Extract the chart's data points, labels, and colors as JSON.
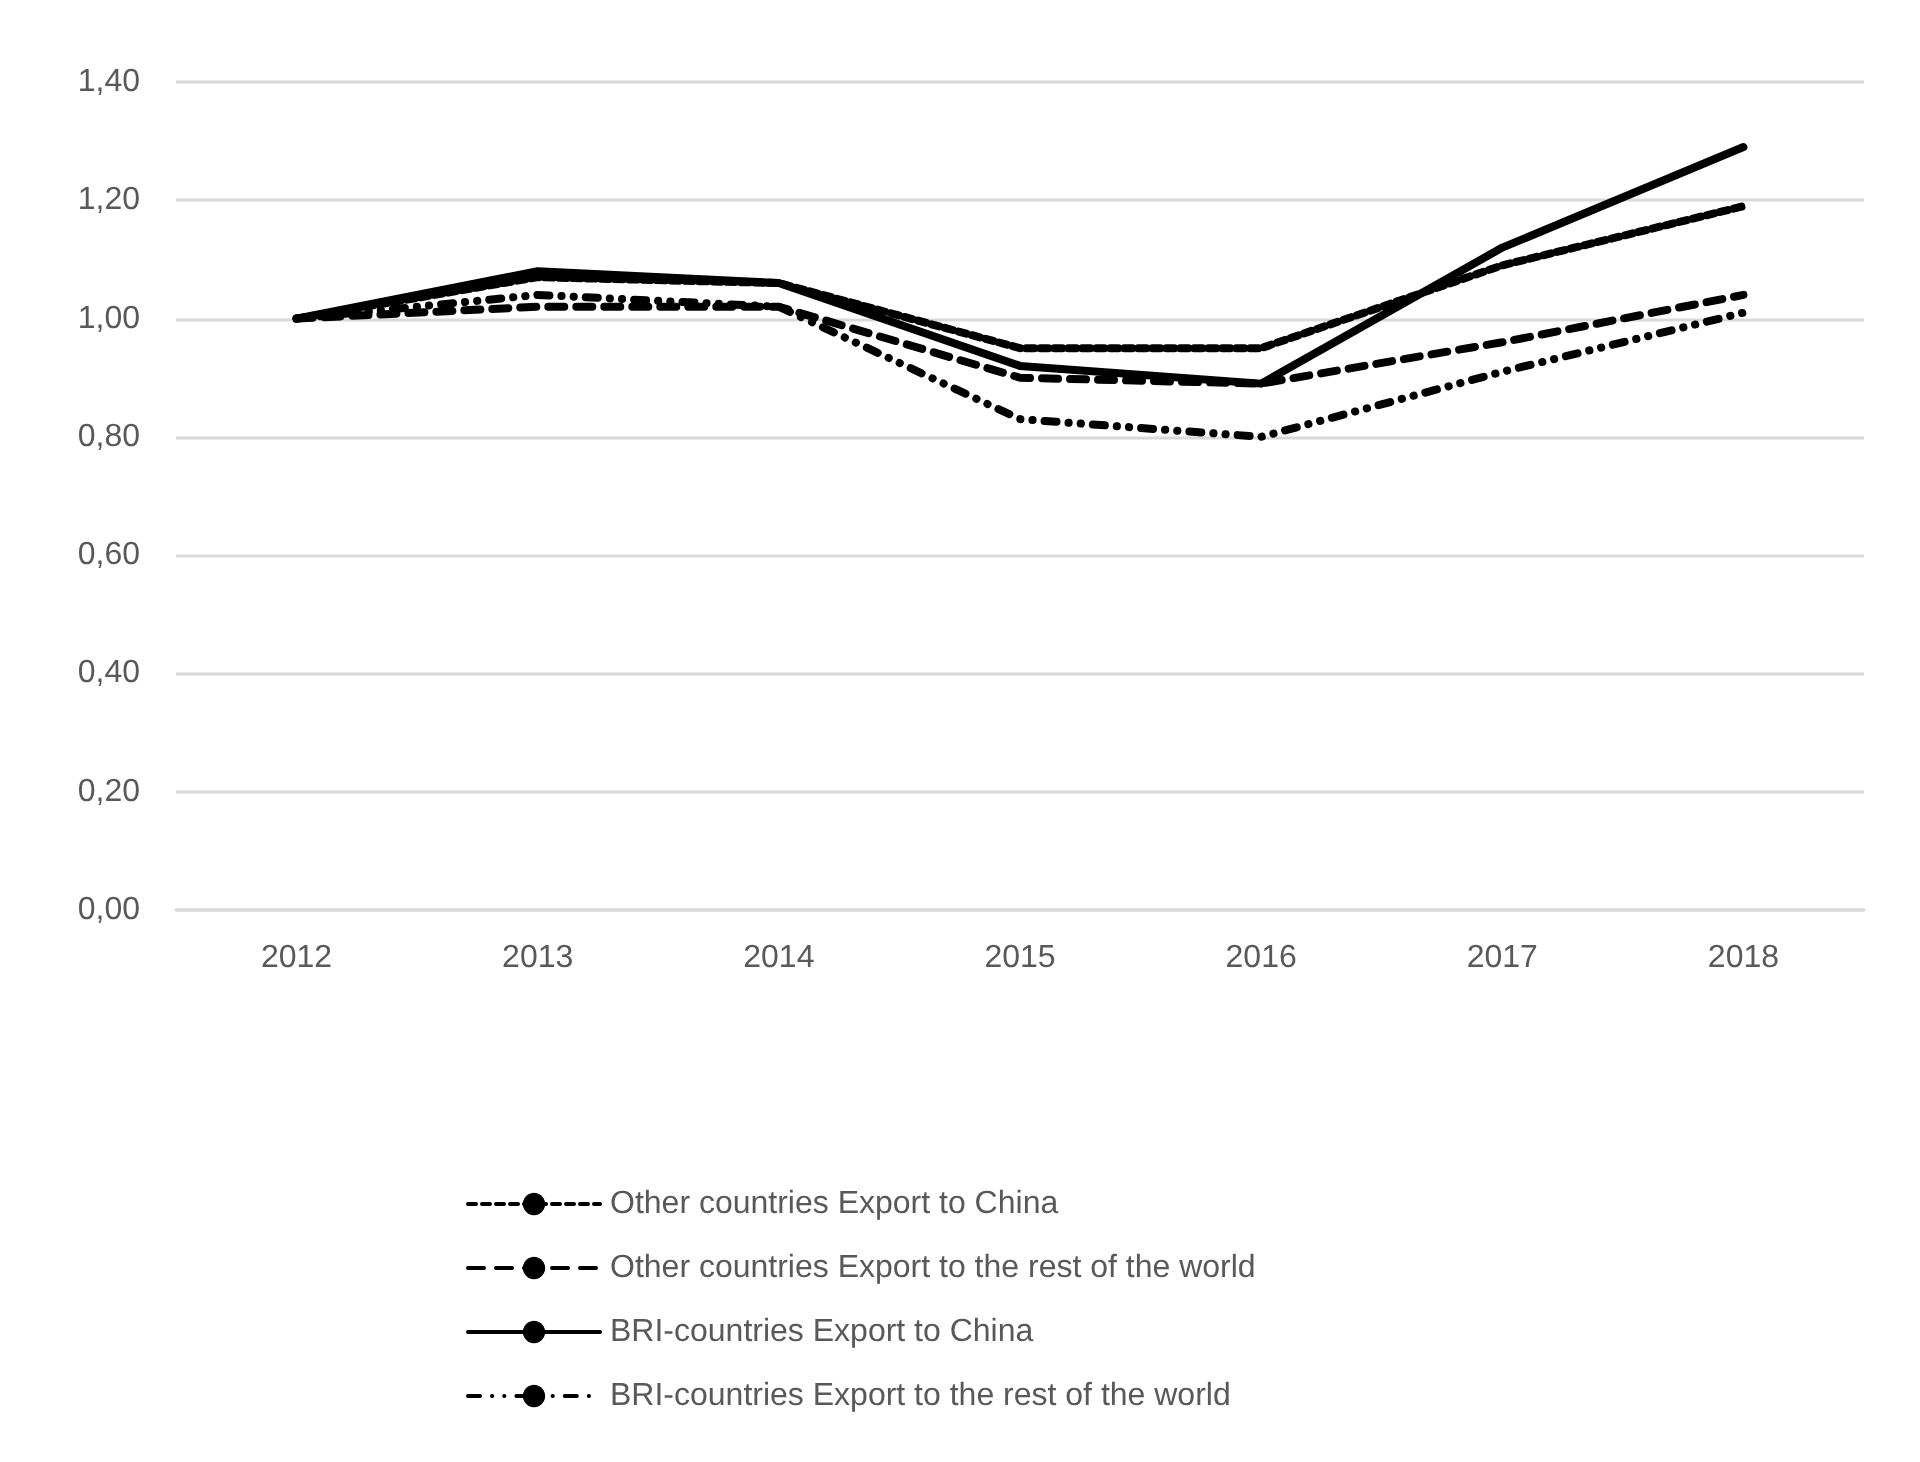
{
  "chart_data": {
    "type": "line",
    "categories": [
      "2012",
      "2013",
      "2014",
      "2015",
      "2016",
      "2017",
      "2018"
    ],
    "series": [
      {
        "name": "Other countries Export to China",
        "color": "#000000",
        "line_style": "dashed",
        "values": [
          1.0,
          1.07,
          1.06,
          0.95,
          0.95,
          1.09,
          1.19
        ]
      },
      {
        "name": "Other countries Export to the rest of the world",
        "color": "#000000",
        "line_style": "longdash",
        "values": [
          1.0,
          1.02,
          1.02,
          0.9,
          0.89,
          0.96,
          1.04
        ]
      },
      {
        "name": "BRI-countries Export to China",
        "color": "#000000",
        "line_style": "solid",
        "values": [
          1.0,
          1.08,
          1.06,
          0.92,
          0.89,
          1.12,
          1.29
        ]
      },
      {
        "name": "BRI-countries Export to the rest of the world",
        "color": "#000000",
        "line_style": "dashdot",
        "values": [
          1.0,
          1.04,
          1.02,
          0.83,
          0.8,
          0.91,
          1.01
        ]
      }
    ],
    "ylim": [
      0,
      1.4
    ],
    "yticks": [
      {
        "value": 0,
        "label": "0,00"
      },
      {
        "value": 0.2,
        "label": "0,20"
      },
      {
        "value": 0.4,
        "label": "0,40"
      },
      {
        "value": 0.6,
        "label": "0,60"
      },
      {
        "value": 0.8,
        "label": "0,80"
      },
      {
        "value": 1.0,
        "label": "1,00"
      },
      {
        "value": 1.2,
        "label": "1,20"
      },
      {
        "value": 1.4,
        "label": "1,40"
      }
    ],
    "grid": "y",
    "legend": "bottom",
    "marker": "none"
  }
}
